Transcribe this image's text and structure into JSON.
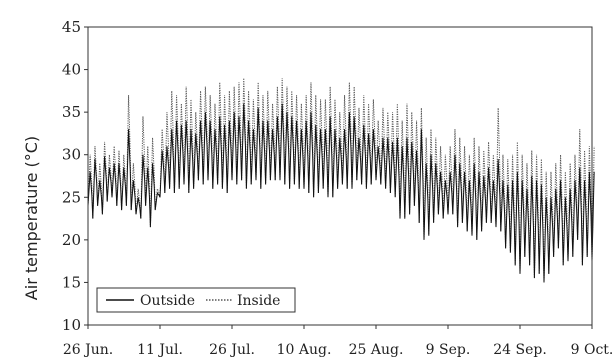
{
  "chart_data": {
    "type": "line",
    "title": "",
    "xlabel": "",
    "ylabel": "Air temperature (°C)",
    "ylim": [
      10,
      45
    ],
    "yticks": [
      10,
      15,
      20,
      25,
      30,
      35,
      40,
      45
    ],
    "xlim": [
      "2012-06-26",
      "2012-10-09"
    ],
    "x_tick_labels": [
      "26 Jun.",
      "11 Jul.",
      "26 Jul.",
      "10 Aug.",
      "25 Aug.",
      "9 Sep.",
      "24 Sep.",
      "9 Oct."
    ],
    "x_tick_days": [
      0,
      15,
      30,
      45,
      60,
      75,
      90,
      105
    ],
    "grid": false,
    "legend": {
      "position": "bottom-left",
      "entries": [
        "Outside",
        "Inside"
      ]
    },
    "series": [
      {
        "name": "Outside",
        "style": "solid",
        "color": "#111111",
        "x_days": [
          0,
          1,
          2,
          3,
          4,
          5,
          6,
          7,
          8,
          9,
          10,
          11,
          12,
          13,
          14,
          15,
          16,
          17,
          18,
          19,
          20,
          21,
          22,
          23,
          24,
          25,
          26,
          27,
          28,
          29,
          30,
          31,
          32,
          33,
          34,
          35,
          36,
          37,
          38,
          39,
          40,
          41,
          42,
          43,
          44,
          45,
          46,
          47,
          48,
          49,
          50,
          51,
          52,
          53,
          54,
          55,
          56,
          57,
          58,
          59,
          60,
          61,
          62,
          63,
          64,
          65,
          66,
          67,
          68,
          69,
          70,
          71,
          72,
          73,
          74,
          75,
          76,
          77,
          78,
          79,
          80,
          81,
          82,
          83,
          84,
          85,
          86,
          87,
          88,
          89,
          90,
          91,
          92,
          93,
          94,
          95,
          96,
          97,
          98,
          99,
          100,
          101,
          102,
          103,
          104,
          105
        ],
        "daily_max": [
          28,
          29.5,
          27,
          29.8,
          28.5,
          29,
          29,
          28.5,
          33,
          27,
          25,
          30,
          28.5,
          29,
          25.5,
          30.5,
          31,
          33,
          34,
          33.5,
          34,
          33,
          32.5,
          34,
          35,
          34,
          33,
          34.5,
          33.5,
          34,
          35,
          34.5,
          36,
          34,
          33,
          35.5,
          34,
          34,
          33,
          34.5,
          36,
          35,
          34.5,
          34,
          33,
          34,
          35,
          33.5,
          33,
          33,
          34.5,
          33,
          32,
          33,
          35,
          34.5,
          32,
          33.5,
          32.5,
          33,
          31,
          32,
          32,
          31.5,
          32,
          31,
          32,
          31.5,
          30.5,
          33,
          29,
          30,
          29,
          28,
          27,
          28,
          30,
          29,
          28,
          27,
          29,
          28,
          27.5,
          28.5,
          27,
          29.5,
          27,
          26.5,
          27,
          28,
          27,
          26,
          27.5,
          27,
          26.5,
          25,
          25,
          26,
          27,
          25,
          26,
          27,
          28.5,
          27,
          28,
          28
        ],
        "daily_min": [
          24,
          22.5,
          24,
          23,
          24.5,
          25,
          24,
          23.5,
          24,
          23.5,
          23,
          22.5,
          24,
          21.5,
          23.5,
          25,
          25.5,
          26,
          25.5,
          26,
          26.5,
          25.5,
          26,
          27,
          26.5,
          27,
          26,
          26.5,
          26,
          25.5,
          27,
          26.5,
          27,
          26,
          26.5,
          27,
          26,
          26.5,
          27,
          27,
          27,
          26.5,
          26,
          26.5,
          26,
          26,
          25.5,
          25,
          25.5,
          26,
          25,
          25,
          26,
          26.5,
          26,
          26,
          27,
          26.5,
          26,
          26.5,
          27,
          26.5,
          26,
          25.5,
          25,
          22.5,
          22.5,
          23,
          24,
          22,
          20,
          20.5,
          22,
          23,
          22.5,
          23,
          23,
          21.5,
          22,
          21,
          20.5,
          20,
          21,
          22,
          22,
          21.5,
          21,
          19,
          18.5,
          17,
          16,
          18,
          17,
          15.5,
          16,
          15,
          16,
          18,
          19,
          17,
          17.5,
          18,
          20,
          17,
          18,
          17.5
        ]
      },
      {
        "name": "Inside",
        "style": "dotted",
        "color": "#555555",
        "x_days": [
          0,
          1,
          2,
          3,
          4,
          5,
          6,
          7,
          8,
          9,
          10,
          11,
          12,
          13,
          14,
          15,
          16,
          17,
          18,
          19,
          20,
          21,
          22,
          23,
          24,
          25,
          26,
          27,
          28,
          29,
          30,
          31,
          32,
          33,
          34,
          35,
          36,
          37,
          38,
          39,
          40,
          41,
          42,
          43,
          44,
          45,
          46,
          47,
          48,
          49,
          50,
          51,
          52,
          53,
          54,
          55,
          56,
          57,
          58,
          59,
          60,
          61,
          62,
          63,
          64,
          65,
          66,
          67,
          68,
          69,
          70,
          71,
          72,
          73,
          74,
          75,
          76,
          77,
          78,
          79,
          80,
          81,
          82,
          83,
          84,
          85,
          86,
          87,
          88,
          89,
          90,
          91,
          92,
          93,
          94,
          95,
          96,
          97,
          98,
          99,
          100,
          101,
          102,
          103,
          104,
          105
        ],
        "daily_max": [
          30,
          31,
          29,
          31.5,
          30,
          31,
          30.5,
          30,
          37,
          29,
          26,
          34.5,
          31,
          32,
          26,
          33,
          35,
          37.5,
          37,
          36,
          38,
          36.5,
          35,
          37.5,
          38,
          37,
          36,
          38.5,
          37,
          37.5,
          38,
          38.5,
          39,
          37.5,
          36.5,
          38.5,
          37,
          37.5,
          36,
          38,
          39,
          38,
          37.5,
          37,
          36,
          37,
          38.5,
          37,
          36.5,
          36.5,
          38,
          36.5,
          35,
          37,
          38.5,
          38,
          35.5,
          37,
          36,
          36.5,
          34,
          35.5,
          35,
          35,
          36,
          34,
          36,
          35,
          34,
          35.5,
          32,
          33,
          32,
          31,
          30,
          31,
          33,
          32,
          31,
          30,
          32,
          31,
          30.5,
          31.5,
          30,
          35.5,
          30,
          29.5,
          30,
          31.5,
          30,
          29,
          30.5,
          30,
          29.5,
          28,
          28,
          29,
          30,
          28,
          29,
          30,
          33,
          30.5,
          31,
          31
        ]
      }
    ]
  }
}
